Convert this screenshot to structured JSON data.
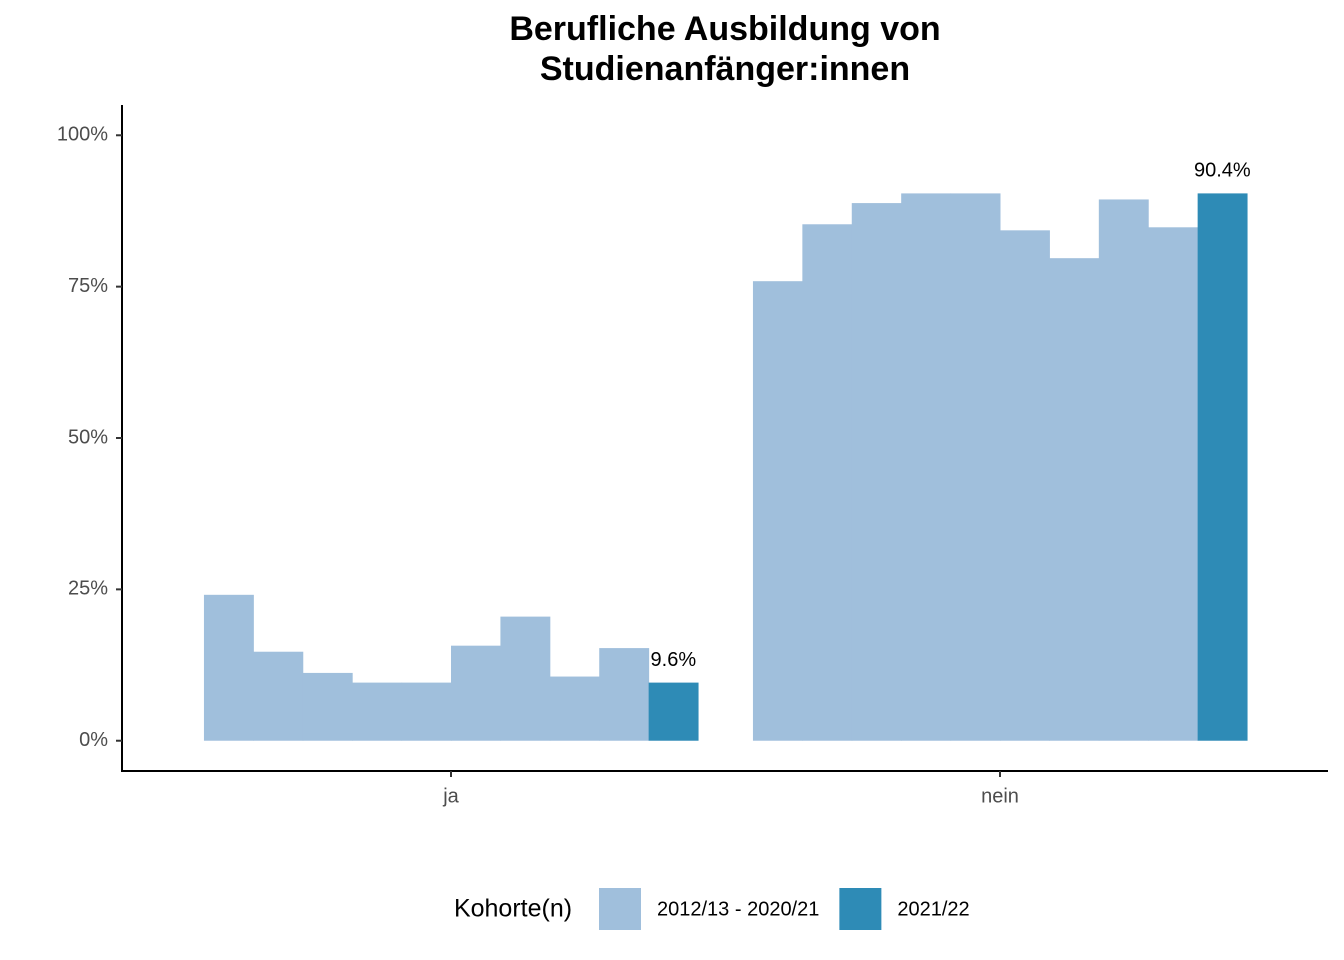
{
  "chart_data": {
    "type": "bar",
    "title": [
      "Berufliche Ausbildung von",
      "Studienanfänger:innen"
    ],
    "categories": [
      "ja",
      "nein"
    ],
    "series": [
      {
        "name": "2012/13 - 2020/21",
        "color": "#a0bfdc",
        "values": [
          [
            24.1,
            14.7,
            11.2,
            9.6,
            9.6,
            15.7,
            20.5,
            10.6,
            15.3
          ],
          [
            75.9,
            85.3,
            88.8,
            90.4,
            90.4,
            84.3,
            79.7,
            89.4,
            84.8
          ]
        ]
      },
      {
        "name": "2021/22",
        "color": "#2e8bb6",
        "values": [
          9.6,
          90.4
        ],
        "value_labels": [
          "9.6%",
          "90.4%"
        ]
      }
    ],
    "legend_title": "Kohorte(n)",
    "legend": "bottom",
    "ylim": [
      -5,
      105
    ],
    "yticks": [
      {
        "value": 0,
        "label": "0%"
      },
      {
        "value": 25,
        "label": "25%"
      },
      {
        "value": 50,
        "label": "50%"
      },
      {
        "value": 75,
        "label": "75%"
      },
      {
        "value": 100,
        "label": "100%"
      }
    ]
  }
}
